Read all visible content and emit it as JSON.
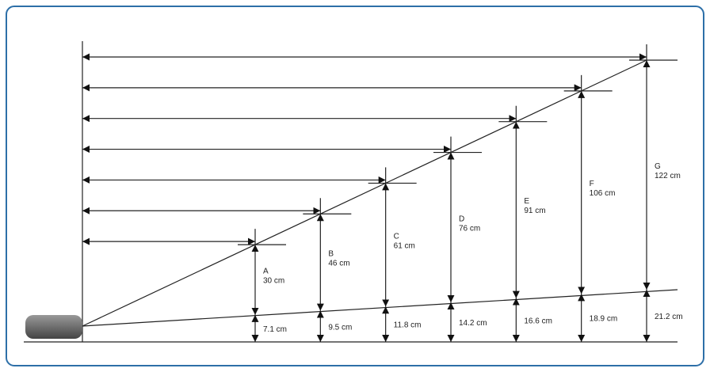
{
  "stations": [
    {
      "letter": "A",
      "size": "30 cm",
      "offset": "7.1 cm"
    },
    {
      "letter": "B",
      "size": "46 cm",
      "offset": "9.5 cm"
    },
    {
      "letter": "C",
      "size": "61 cm",
      "offset": "11.8 cm"
    },
    {
      "letter": "D",
      "size": "76 cm",
      "offset": "14.2 cm"
    },
    {
      "letter": "E",
      "size": "91 cm",
      "offset": "16.6 cm"
    },
    {
      "letter": "F",
      "size": "106 cm",
      "offset": "18.9 cm"
    },
    {
      "letter": "G",
      "size": "122 cm",
      "offset": "21.2 cm"
    }
  ]
}
